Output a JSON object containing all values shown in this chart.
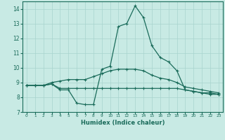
{
  "title": "",
  "xlabel": "Humidex (Indice chaleur)",
  "ylabel": "",
  "xlim": [
    -0.5,
    23.5
  ],
  "ylim": [
    7,
    14.5
  ],
  "yticks": [
    7,
    8,
    9,
    10,
    11,
    12,
    13,
    14
  ],
  "xticks": [
    0,
    1,
    2,
    3,
    4,
    5,
    6,
    7,
    8,
    9,
    10,
    11,
    12,
    13,
    14,
    15,
    16,
    17,
    18,
    19,
    20,
    21,
    22,
    23
  ],
  "background_color": "#c8eae4",
  "grid_color": "#a8d4ce",
  "line_color": "#1a6b5a",
  "line1_x": [
    0,
    1,
    2,
    3,
    4,
    5,
    6,
    7,
    8,
    9,
    10,
    11,
    12,
    13,
    14,
    15,
    16,
    17,
    18,
    19,
    20,
    21,
    22,
    23
  ],
  "line1_y": [
    8.8,
    8.8,
    8.8,
    8.9,
    8.5,
    8.5,
    7.6,
    7.5,
    7.5,
    9.9,
    10.1,
    12.8,
    13.0,
    14.2,
    13.4,
    11.5,
    10.7,
    10.4,
    9.8,
    8.5,
    8.4,
    8.3,
    8.2,
    8.2
  ],
  "line2_x": [
    0,
    1,
    2,
    3,
    4,
    5,
    6,
    7,
    8,
    9,
    10,
    11,
    12,
    13,
    14,
    15,
    16,
    17,
    18,
    19,
    20,
    21,
    22,
    23
  ],
  "line2_y": [
    8.8,
    8.8,
    8.8,
    8.9,
    8.6,
    8.6,
    8.6,
    8.6,
    8.6,
    8.6,
    8.6,
    8.6,
    8.6,
    8.6,
    8.6,
    8.6,
    8.6,
    8.6,
    8.6,
    8.5,
    8.4,
    8.3,
    8.3,
    8.2
  ],
  "line3_x": [
    0,
    1,
    2,
    3,
    4,
    5,
    6,
    7,
    8,
    9,
    10,
    11,
    12,
    13,
    14,
    15,
    16,
    17,
    18,
    19,
    20,
    21,
    22,
    23
  ],
  "line3_y": [
    8.8,
    8.8,
    8.8,
    9.0,
    9.1,
    9.2,
    9.2,
    9.2,
    9.4,
    9.6,
    9.8,
    9.9,
    9.9,
    9.9,
    9.8,
    9.5,
    9.3,
    9.2,
    9.0,
    8.7,
    8.6,
    8.5,
    8.4,
    8.3
  ]
}
